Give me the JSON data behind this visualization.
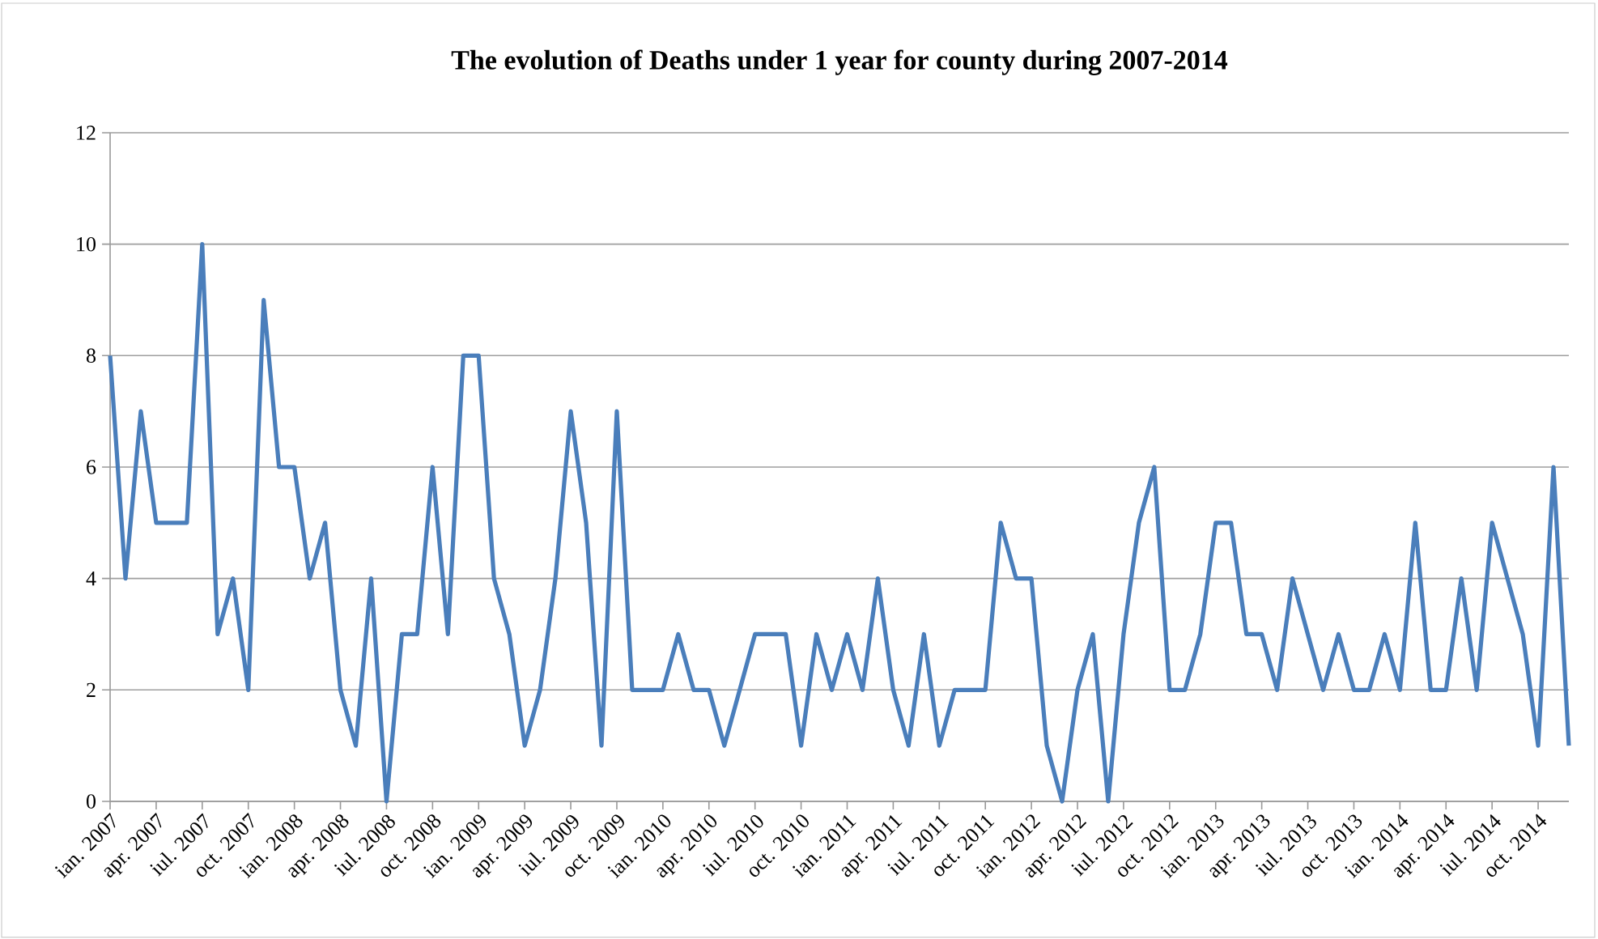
{
  "chart_data": {
    "type": "line",
    "title": "The evolution of Deaths under 1 year for county during 2007-2014",
    "x": [
      "2007-01",
      "2007-02",
      "2007-03",
      "2007-04",
      "2007-05",
      "2007-06",
      "2007-07",
      "2007-08",
      "2007-09",
      "2007-10",
      "2007-11",
      "2007-12",
      "2008-01",
      "2008-02",
      "2008-03",
      "2008-04",
      "2008-05",
      "2008-06",
      "2008-07",
      "2008-08",
      "2008-09",
      "2008-10",
      "2008-11",
      "2008-12",
      "2009-01",
      "2009-02",
      "2009-03",
      "2009-04",
      "2009-05",
      "2009-06",
      "2009-07",
      "2009-08",
      "2009-09",
      "2009-10",
      "2009-11",
      "2009-12",
      "2010-01",
      "2010-02",
      "2010-03",
      "2010-04",
      "2010-05",
      "2010-06",
      "2010-07",
      "2010-08",
      "2010-09",
      "2010-10",
      "2010-11",
      "2010-12",
      "2011-01",
      "2011-02",
      "2011-03",
      "2011-04",
      "2011-05",
      "2011-06",
      "2011-07",
      "2011-08",
      "2011-09",
      "2011-10",
      "2011-11",
      "2011-12",
      "2012-01",
      "2012-02",
      "2012-03",
      "2012-04",
      "2012-05",
      "2012-06",
      "2012-07",
      "2012-08",
      "2012-09",
      "2012-10",
      "2012-11",
      "2012-12",
      "2013-01",
      "2013-02",
      "2013-03",
      "2013-04",
      "2013-05",
      "2013-06",
      "2013-07",
      "2013-08",
      "2013-09",
      "2013-10",
      "2013-11",
      "2013-12",
      "2014-01",
      "2014-02",
      "2014-03",
      "2014-04",
      "2014-05",
      "2014-06",
      "2014-07",
      "2014-08",
      "2014-09",
      "2014-10",
      "2014-11",
      "2014-12"
    ],
    "series": [
      {
        "color": "#4a7ebb",
        "values": [
          8,
          4,
          7,
          5,
          5,
          5,
          10,
          3,
          4,
          2,
          9,
          6,
          6,
          4,
          5,
          2,
          1,
          4,
          0,
          3,
          3,
          6,
          3,
          8,
          8,
          4,
          3,
          1,
          2,
          4,
          7,
          5,
          1,
          7,
          2,
          2,
          2,
          3,
          2,
          2,
          1,
          2,
          3,
          3,
          3,
          1,
          3,
          2,
          3,
          2,
          4,
          2,
          1,
          3,
          1,
          2,
          2,
          2,
          5,
          4,
          4,
          1,
          0,
          2,
          3,
          0,
          3,
          5,
          6,
          2,
          2,
          3,
          5,
          5,
          3,
          3,
          2,
          4,
          3,
          2,
          3,
          2,
          2,
          3,
          2,
          5,
          2,
          2,
          4,
          2,
          5,
          4,
          3,
          1,
          6,
          1
        ]
      }
    ],
    "xlim": [
      "2007-01",
      "2014-12"
    ],
    "xticks": [
      {
        "value": "2007-01",
        "label": "ian. 2007"
      },
      {
        "value": "2007-04",
        "label": "apr. 2007"
      },
      {
        "value": "2007-07",
        "label": "iul. 2007"
      },
      {
        "value": "2007-10",
        "label": "oct. 2007"
      },
      {
        "value": "2008-01",
        "label": "ian. 2008"
      },
      {
        "value": "2008-04",
        "label": "apr. 2008"
      },
      {
        "value": "2008-07",
        "label": "iul. 2008"
      },
      {
        "value": "2008-10",
        "label": "oct. 2008"
      },
      {
        "value": "2009-01",
        "label": "ian. 2009"
      },
      {
        "value": "2009-04",
        "label": "apr. 2009"
      },
      {
        "value": "2009-07",
        "label": "iul. 2009"
      },
      {
        "value": "2009-10",
        "label": "oct. 2009"
      },
      {
        "value": "2010-01",
        "label": "ian. 2010"
      },
      {
        "value": "2010-04",
        "label": "apr. 2010"
      },
      {
        "value": "2010-07",
        "label": "iul. 2010"
      },
      {
        "value": "2010-10",
        "label": "oct. 2010"
      },
      {
        "value": "2011-01",
        "label": "ian. 2011"
      },
      {
        "value": "2011-04",
        "label": "apr. 2011"
      },
      {
        "value": "2011-07",
        "label": "iul. 2011"
      },
      {
        "value": "2011-10",
        "label": "oct. 2011"
      },
      {
        "value": "2012-01",
        "label": "ian. 2012"
      },
      {
        "value": "2012-04",
        "label": "apr. 2012"
      },
      {
        "value": "2012-07",
        "label": "iul. 2012"
      },
      {
        "value": "2012-10",
        "label": "oct. 2012"
      },
      {
        "value": "2013-01",
        "label": "ian. 2013"
      },
      {
        "value": "2013-04",
        "label": "apr. 2013"
      },
      {
        "value": "2013-07",
        "label": "iul. 2013"
      },
      {
        "value": "2013-10",
        "label": "oct. 2013"
      },
      {
        "value": "2014-01",
        "label": "ian. 2014"
      },
      {
        "value": "2014-04",
        "label": "apr. 2014"
      },
      {
        "value": "2014-07",
        "label": "iul. 2014"
      },
      {
        "value": "2014-10",
        "label": "oct. 2014"
      }
    ],
    "ylim": [
      0,
      12
    ],
    "yticks": [
      0,
      2,
      4,
      6,
      8,
      10,
      12
    ],
    "grid": "y"
  }
}
